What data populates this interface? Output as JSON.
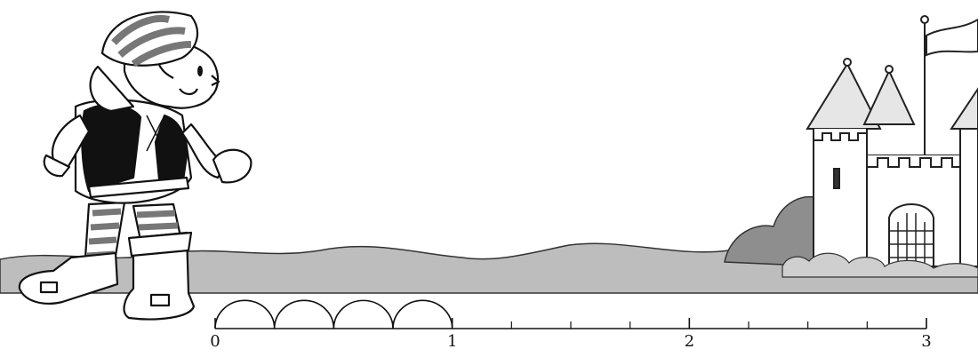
{
  "number_line": {
    "start": 0,
    "end": 3,
    "subdivisions_per_unit": 4,
    "labels": [
      "0",
      "1",
      "2",
      "3"
    ],
    "jumps": {
      "count": 4,
      "size_fraction": "1/4",
      "from": 0,
      "to": 1
    }
  },
  "colors": {
    "ink": "#111111",
    "ground": "#bdbdbd",
    "bush_light": "#cfcfcf",
    "bush_dark": "#8e8e8e",
    "sky": "#ffffff"
  },
  "icons": {
    "character": "boy-runner-illustration",
    "destination": "castle-illustration"
  }
}
